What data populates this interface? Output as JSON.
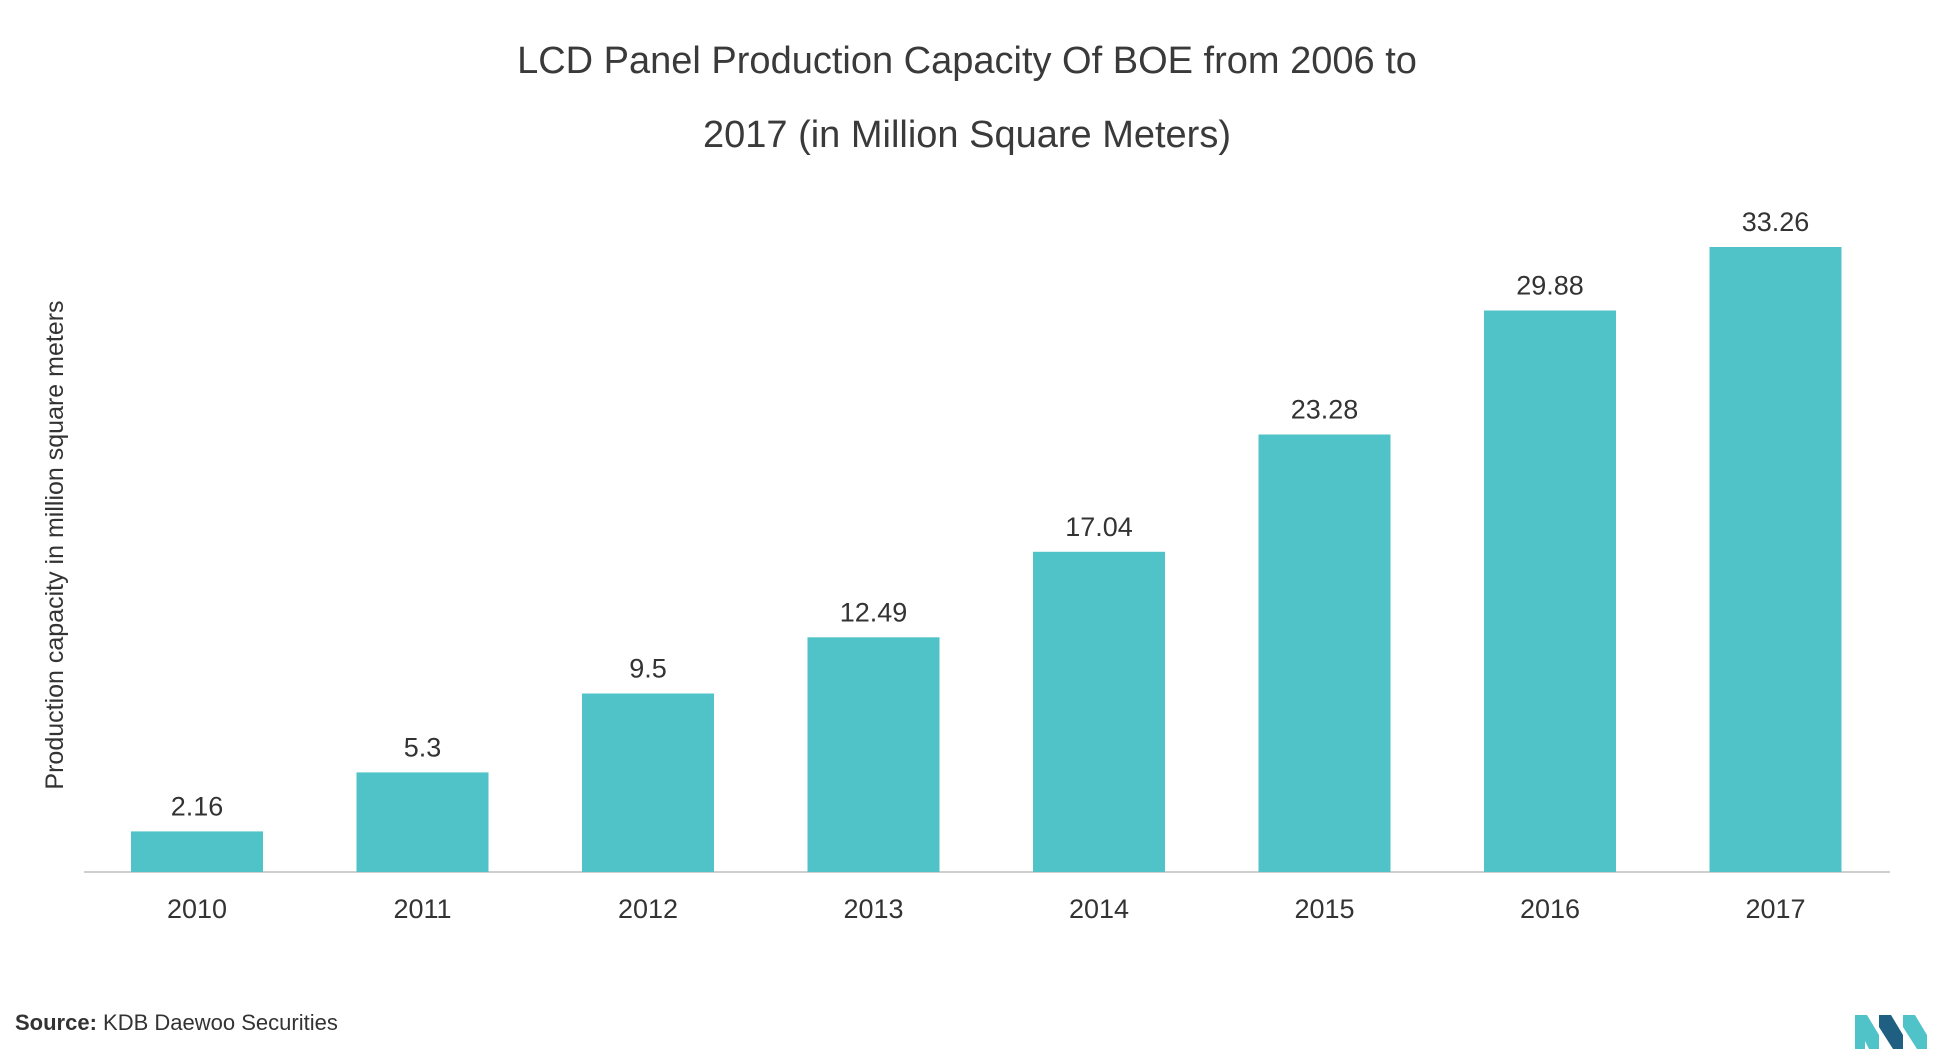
{
  "colors": {
    "bar": "#4fc3c8",
    "text": "#333333",
    "axis": "#cfcfcf",
    "logo_light": "#4fc3c8",
    "logo_dark": "#1e5f82"
  },
  "source": {
    "label": "Source:",
    "text": "KDB Daewoo Securities"
  },
  "logo": {
    "icon": "mordor-logo-icon"
  },
  "chart_data": {
    "type": "bar",
    "title_lines": [
      "LCD Panel Production Capacity Of BOE from 2006 to",
      "2017 (in Million Square Meters)"
    ],
    "categories": [
      "2010",
      "2011",
      "2012",
      "2013",
      "2014",
      "2015",
      "2016",
      "2017"
    ],
    "values": [
      2.16,
      5.3,
      9.5,
      12.49,
      17.04,
      23.28,
      29.88,
      33.26
    ],
    "value_labels": [
      "2.16",
      "5.3",
      "9.5",
      "12.49",
      "17.04",
      "23.28",
      "29.88",
      "33.26"
    ],
    "xlabel": "",
    "ylabel": "Production capacity in million square meters",
    "ylim": [
      0,
      33.26
    ],
    "grid": false,
    "legend": "none"
  }
}
